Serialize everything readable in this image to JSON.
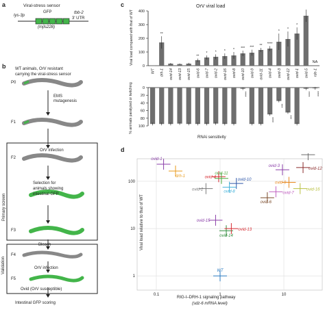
{
  "panel_a": {
    "letter": "a",
    "title": "Viral-stress sensor",
    "promoter": "lys-3p",
    "reporter": "GFP",
    "utr_line1": "tbb-2",
    "utr_line2": "3' UTR",
    "allele": "(mjIs228)"
  },
  "panel_b": {
    "letter": "b",
    "title_line1": "WT animals, OrV resistant",
    "title_line2": "carrying the viral-stress sensor",
    "generations": [
      "P0",
      "F1",
      "F2",
      "F3",
      "F4",
      "F5"
    ],
    "step_mutagenesis": "EMS\nmutagenesis",
    "step_infection": "OrV infection",
    "step_selection_line1": "Selection for",
    "step_selection_line2": "animals showing",
    "step_selection_line3": "intestinal GFP",
    "step_bleach": "Bleach",
    "step_infection2": "OrV infection",
    "step_ovid": "Ovid (OrV susceptible)",
    "step_scoring": "Intestinal GFP scoring",
    "label_primary": "Primary screen",
    "label_validation": "Validation"
  },
  "panel_c": {
    "letter": "c",
    "title": "OrV viral load",
    "ylabel_top": "Viral load compared with that of WT",
    "ylabel_bottom": "% animals paralyzed or twitching",
    "xlabel": "RNAi sensitivity",
    "na_label": "NA",
    "categories": [
      "WT",
      "drh-1",
      "ovid-14",
      "ovid-13",
      "ovid-15",
      "ovid-6",
      "ovid-7",
      "ovid-2",
      "ovid-16",
      "ovid-8",
      "ovid-10",
      "ovid-9",
      "ovid-11",
      "ovid-4",
      "ovid-3",
      "ovid-12",
      "ovid-1",
      "ovid-5",
      "rde-1"
    ],
    "top_ticks": [
      "400",
      "300",
      "200",
      "100",
      "0"
    ],
    "bottom_ticks": [
      "0",
      "20",
      "40",
      "60",
      "80",
      "100"
    ],
    "sig_top": [
      "",
      "**",
      "",
      "",
      "",
      "**",
      "*",
      "*",
      "*",
      "*",
      "***",
      "***",
      "**",
      "****",
      "*",
      "*",
      "*",
      "**",
      ""
    ],
    "sig_bottom": [
      "",
      "",
      "",
      "",
      "",
      "",
      "",
      "",
      "",
      "",
      "****",
      "",
      "",
      "****",
      "***",
      "***",
      "",
      "****",
      "****"
    ]
  },
  "panel_d": {
    "letter": "d",
    "ylabel": "Viral load relative to that of WT",
    "xlabel_line1": "RIG-I–DRH-1 signaling pathway",
    "xlabel_line2": "(sdz-6 mRNA level)",
    "x_ticks": [
      "0.1",
      "1",
      "10"
    ],
    "y_ticks": [
      "100",
      "10",
      "1"
    ]
  },
  "chart_data": [
    {
      "type": "bar",
      "title": "OrV viral load",
      "ylabel": "Viral load compared with that of WT",
      "categories": [
        "WT",
        "drh-1",
        "ovid-14",
        "ovid-13",
        "ovid-15",
        "ovid-6",
        "ovid-7",
        "ovid-2",
        "ovid-16",
        "ovid-8",
        "ovid-10",
        "ovid-9",
        "ovid-11",
        "ovid-4",
        "ovid-3",
        "ovid-12",
        "ovid-1",
        "ovid-5",
        "rde-1"
      ],
      "values": [
        1,
        170,
        15,
        12,
        15,
        40,
        60,
        65,
        70,
        75,
        90,
        95,
        115,
        125,
        175,
        195,
        235,
        365,
        null
      ],
      "errors": [
        0,
        45,
        5,
        4,
        6,
        12,
        15,
        18,
        20,
        25,
        20,
        22,
        15,
        18,
        60,
        55,
        45,
        45,
        null
      ],
      "ylim": [
        0,
        400
      ]
    },
    {
      "type": "bar",
      "xlabel": "RNAi sensitivity",
      "ylabel": "% animals paralyzed or twitching",
      "categories": [
        "WT",
        "drh-1",
        "ovid-14",
        "ovid-13",
        "ovid-15",
        "ovid-6",
        "ovid-7",
        "ovid-2",
        "ovid-16",
        "ovid-8",
        "ovid-10",
        "ovid-9",
        "ovid-11",
        "ovid-4",
        "ovid-3",
        "ovid-12",
        "ovid-1",
        "ovid-5",
        "rde-1"
      ],
      "values": [
        95,
        95,
        95,
        94,
        95,
        95,
        95,
        94,
        95,
        95,
        3,
        95,
        95,
        70,
        35,
        65,
        95,
        3,
        2
      ],
      "ylim": [
        0,
        100
      ]
    },
    {
      "type": "scatter",
      "xlabel": "RIG-I–DRH-1 signaling pathway (sdz-6 mRNA level)",
      "ylabel": "Viral load relative to that of WT",
      "xscale": "log",
      "yscale": "log",
      "xlim": [
        0.05,
        40
      ],
      "ylim": [
        0.5,
        300
      ],
      "points": [
        {
          "name": "ovid-1",
          "x": 0.13,
          "y": 230,
          "color": "#8a3ea8"
        },
        {
          "name": "drh-1",
          "x": 0.2,
          "y": 165,
          "color": "#e89a1a"
        },
        {
          "name": "ovid-4",
          "x": 0.95,
          "y": 125,
          "color": "#d6282f"
        },
        {
          "name": "ovid-2",
          "x": 0.6,
          "y": 70,
          "color": "#7a7a7a"
        },
        {
          "name": "ovid-11",
          "x": 1.05,
          "y": 115,
          "color": "#4aa83c"
        },
        {
          "name": "ovid-10",
          "x": 1.8,
          "y": 90,
          "color": "#2d56a8"
        },
        {
          "name": "ovid-8",
          "x": 1.4,
          "y": 75,
          "color": "#3fb0d9"
        },
        {
          "name": "ovid-15",
          "x": 0.85,
          "y": 15,
          "color": "#8a3ea8"
        },
        {
          "name": "ovid-14",
          "x": 1.25,
          "y": 9,
          "color": "#2e8a3a"
        },
        {
          "name": "ovid-13",
          "x": 1.5,
          "y": 10,
          "color": "#d6282f"
        },
        {
          "name": "ovid-6",
          "x": 5.5,
          "y": 45,
          "color": "#7a4a2a"
        },
        {
          "name": "ovid-3",
          "x": 9.5,
          "y": 175,
          "color": "#8a3ea8"
        },
        {
          "name": "ovid-9",
          "x": 12,
          "y": 95,
          "color": "#e8861a"
        },
        {
          "name": "ovid-7",
          "x": 7.5,
          "y": 60,
          "color": "#c060c0"
        },
        {
          "name": "ovid-5",
          "x": 24,
          "y": 365,
          "color": "#6a6a6a"
        },
        {
          "name": "ovid-12",
          "x": 20,
          "y": 195,
          "color": "#8a2a2a"
        },
        {
          "name": "ovid-16",
          "x": 18,
          "y": 70,
          "color": "#b8c040"
        },
        {
          "name": "WT",
          "x": 1,
          "y": 1,
          "color": "#2a7ac0"
        }
      ]
    }
  ]
}
